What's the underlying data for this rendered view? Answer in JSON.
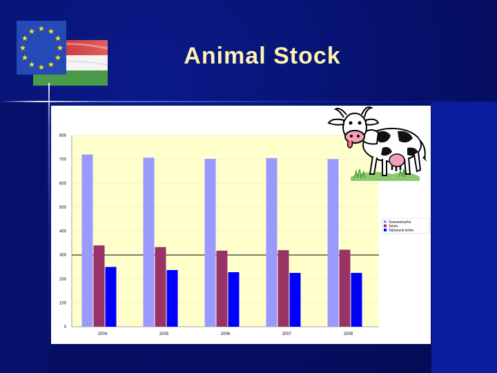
{
  "slide": {
    "title": "Animal Stock"
  },
  "chart_data": {
    "type": "bar",
    "categories": [
      "2004",
      "2005",
      "2006",
      "2007",
      "2008"
    ],
    "series": [
      {
        "name": "Szarvasmarha",
        "values": [
          720,
          707,
          702,
          705,
          701
        ],
        "color": "#9999ff"
      },
      {
        "name": "Tehén",
        "values": [
          340,
          333,
          318,
          320,
          322
        ],
        "color": "#993366"
      },
      {
        "name": "Tejhasznú tehén",
        "values": [
          250,
          237,
          228,
          225,
          225
        ],
        "color": "#0000ff"
      }
    ],
    "ylim": [
      0,
      800
    ],
    "yticks": [
      0,
      100,
      200,
      300,
      400,
      500,
      600,
      700,
      800
    ],
    "grid": true,
    "legend": "right",
    "plot_background": "#ffffcc"
  },
  "icons": {
    "flags": "eu-hungary-flags-icon",
    "cow": "cow-icon"
  }
}
